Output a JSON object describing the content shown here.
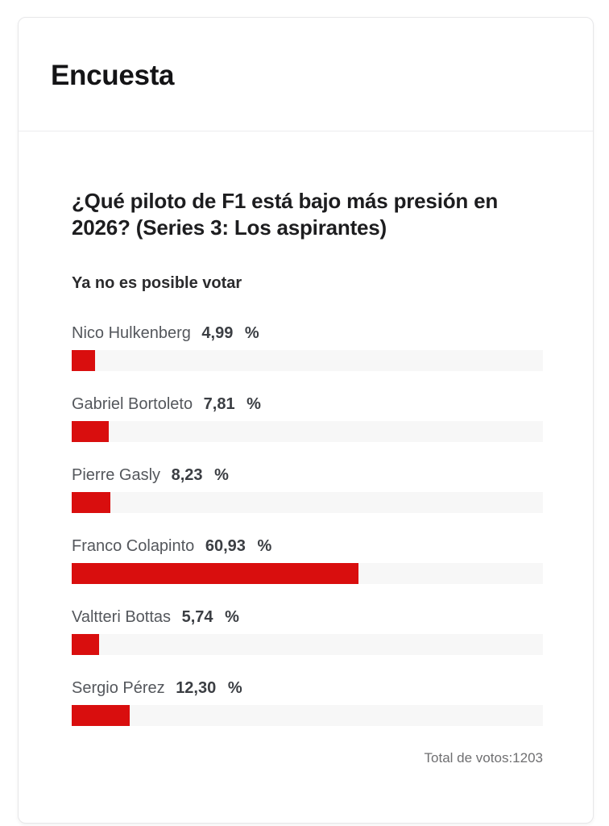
{
  "card": {
    "title": "Encuesta"
  },
  "poll": {
    "question": "¿Qué piloto de F1 está bajo más presión en 2026? (Series 3: Los aspirantes)",
    "notice": "Ya no es posible votar",
    "percent_sign": "%",
    "options": [
      {
        "name": "Nico Hulkenberg",
        "value_label": "4,99",
        "percent": 4.99
      },
      {
        "name": "Gabriel Bortoleto",
        "value_label": "7,81",
        "percent": 7.81
      },
      {
        "name": "Pierre Gasly",
        "value_label": "8,23",
        "percent": 8.23
      },
      {
        "name": "Franco Colapinto",
        "value_label": "60,93",
        "percent": 60.93
      },
      {
        "name": "Valtteri Bottas",
        "value_label": "5,74",
        "percent": 5.74
      },
      {
        "name": "Sergio Pérez",
        "value_label": "12,30",
        "percent": 12.3
      }
    ],
    "total_label": "Total de votos:",
    "total_votes": "1203"
  },
  "colors": {
    "bar_fill": "#d90e0e",
    "bar_track": "#f7f7f7"
  },
  "chart_data": {
    "type": "bar",
    "orientation": "horizontal",
    "title": "¿Qué piloto de F1 está bajo más presión en 2026? (Series 3: Los aspirantes)",
    "categories": [
      "Nico Hulkenberg",
      "Gabriel Bortoleto",
      "Pierre Gasly",
      "Franco Colapinto",
      "Valtteri Bottas",
      "Sergio Pérez"
    ],
    "values": [
      4.99,
      7.81,
      8.23,
      60.93,
      5.74,
      12.3
    ],
    "value_unit": "%",
    "value_labels": [
      "4,99 %",
      "7,81 %",
      "8,23 %",
      "60,93 %",
      "5,74 %",
      "12,30 %"
    ],
    "xlim": [
      0,
      100
    ],
    "grid": false,
    "legend": false,
    "bar_color": "#d90e0e",
    "annotation": "Total de votos:1203",
    "total_votes": 1203
  }
}
